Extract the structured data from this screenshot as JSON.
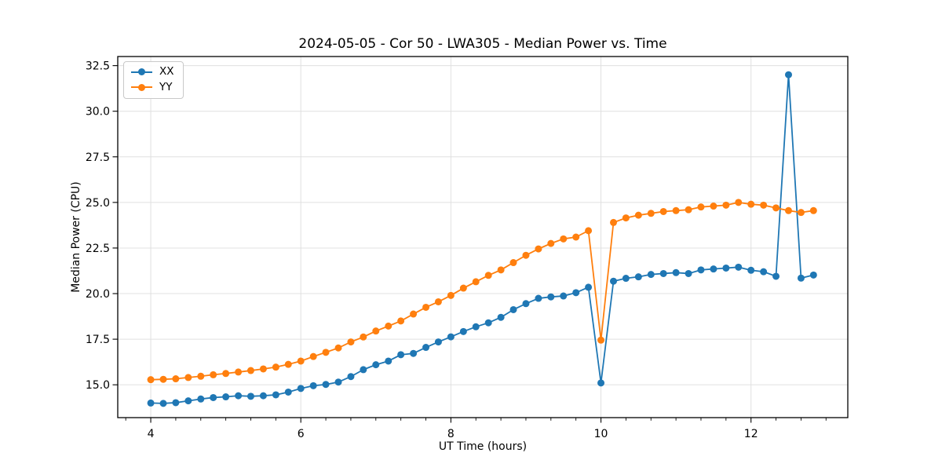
{
  "chart_data": {
    "type": "line",
    "title": "2024-05-05 - Cor 50 - LWA305 - Median Power vs. Time",
    "xlabel": "UT Time (hours)",
    "ylabel": "Median Power (CPU)",
    "x": [
      4.0,
      4.167,
      4.333,
      4.5,
      4.667,
      4.833,
      5.0,
      5.167,
      5.333,
      5.5,
      5.667,
      5.833,
      6.0,
      6.167,
      6.333,
      6.5,
      6.667,
      6.833,
      7.0,
      7.167,
      7.333,
      7.5,
      7.667,
      7.833,
      8.0,
      8.167,
      8.333,
      8.5,
      8.667,
      8.833,
      9.0,
      9.167,
      9.333,
      9.5,
      9.667,
      9.833,
      10.0,
      10.167,
      10.333,
      10.5,
      10.667,
      10.833,
      11.0,
      11.167,
      11.333,
      11.5,
      11.667,
      11.833,
      12.0,
      12.167,
      12.333,
      12.5,
      12.667,
      12.833
    ],
    "series": [
      {
        "name": "XX",
        "color": "#1f77b4",
        "values": [
          14.0,
          13.98,
          14.02,
          14.12,
          14.22,
          14.3,
          14.34,
          14.4,
          14.37,
          14.4,
          14.45,
          14.6,
          14.8,
          14.95,
          15.02,
          15.15,
          15.45,
          15.83,
          16.1,
          16.3,
          16.65,
          16.72,
          17.05,
          17.35,
          17.63,
          17.92,
          18.18,
          18.4,
          18.7,
          19.12,
          19.45,
          19.74,
          19.82,
          19.87,
          20.05,
          20.35,
          15.1,
          20.68,
          20.84,
          20.92,
          21.05,
          21.1,
          21.15,
          21.1,
          21.3,
          21.35,
          21.4,
          21.45,
          21.28,
          21.2,
          20.95,
          32.0,
          20.85,
          21.02
        ]
      },
      {
        "name": "YY",
        "color": "#ff7f0e",
        "values": [
          15.28,
          15.3,
          15.33,
          15.4,
          15.47,
          15.55,
          15.62,
          15.7,
          15.78,
          15.87,
          15.97,
          16.12,
          16.3,
          16.55,
          16.78,
          17.02,
          17.35,
          17.62,
          17.95,
          18.22,
          18.5,
          18.88,
          19.25,
          19.55,
          19.9,
          20.3,
          20.65,
          21.0,
          21.3,
          21.7,
          22.1,
          22.45,
          22.75,
          23.0,
          23.1,
          23.45,
          17.45,
          23.9,
          24.15,
          24.3,
          24.4,
          24.5,
          24.55,
          24.6,
          24.75,
          24.8,
          24.85,
          25.0,
          24.9,
          24.85,
          24.7,
          24.55,
          24.45,
          24.55
        ]
      }
    ],
    "xlim": [
      3.56,
      13.29
    ],
    "ylim": [
      13.2,
      33.0
    ],
    "xticks": [
      4,
      6,
      8,
      10,
      12
    ],
    "xtick_labels": [
      "4",
      "6",
      "8",
      "10",
      "12"
    ],
    "yticks": [
      15.0,
      17.5,
      20.0,
      22.5,
      25.0,
      27.5,
      30.0,
      32.5
    ],
    "ytick_labels": [
      "15.0",
      "17.5",
      "20.0",
      "22.5",
      "25.0",
      "27.5",
      "30.0",
      "32.5"
    ],
    "minor_xtick_step": 0.33333,
    "grid": true,
    "legend_position": "upper left",
    "marker": "o"
  },
  "colors": {
    "grid": "#e0e0e0",
    "spine": "#000000",
    "tick": "#000000",
    "text": "#000000",
    "background": "#ffffff"
  }
}
